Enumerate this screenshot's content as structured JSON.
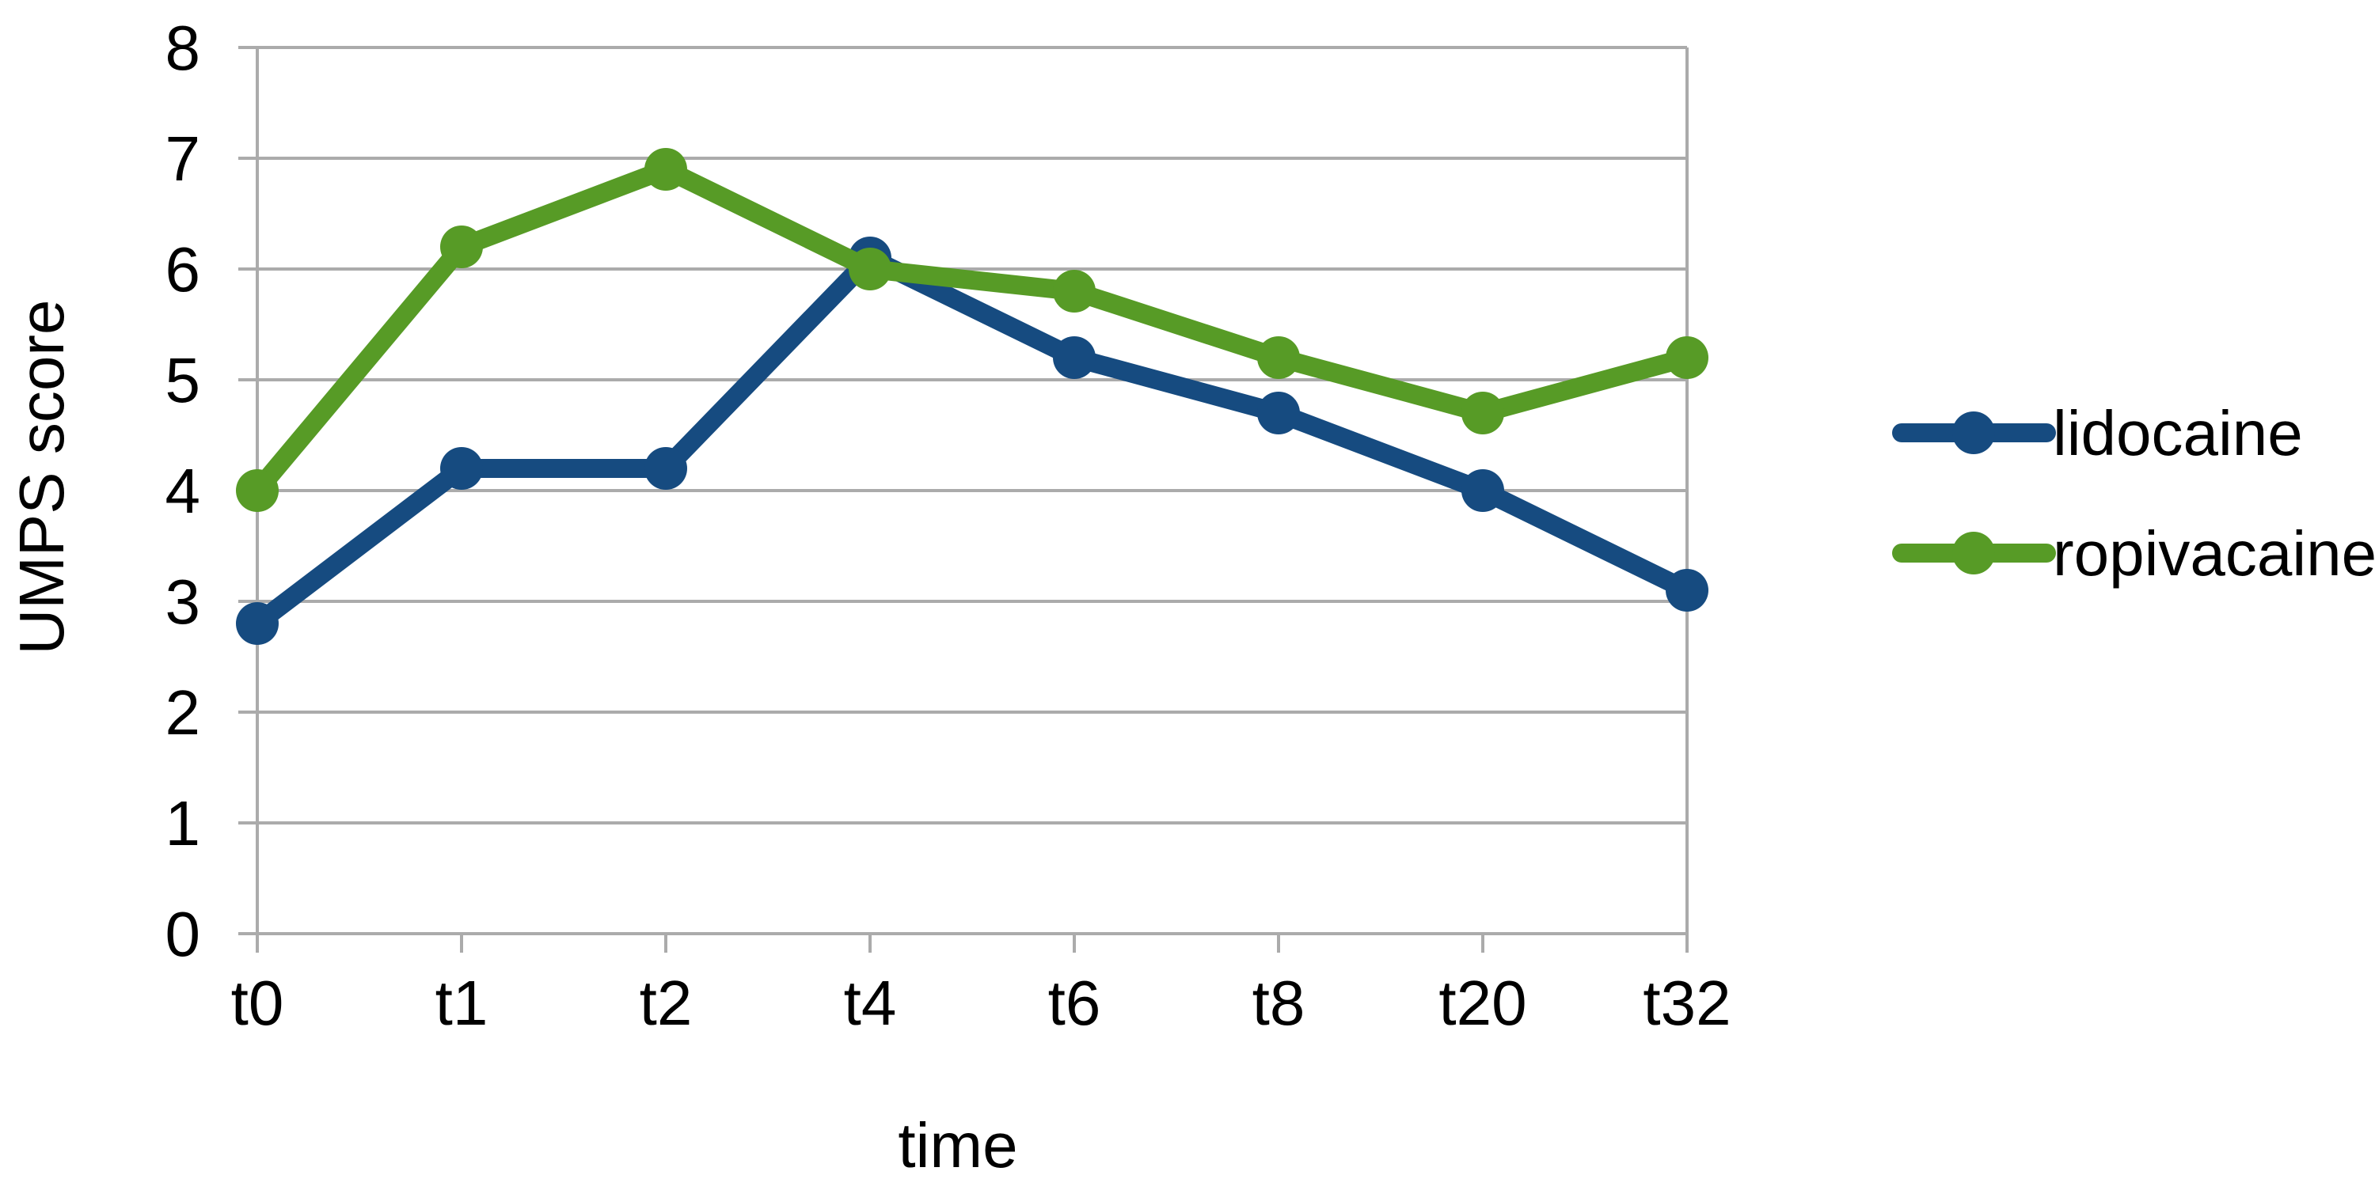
{
  "chart_data": {
    "type": "line",
    "title": "",
    "categories": [
      "t0",
      "t1",
      "t2",
      "t4",
      "t6",
      "t8",
      "t20",
      "t32"
    ],
    "series": [
      {
        "name": "lidocaine",
        "color": "#164B80",
        "values": [
          2.8,
          4.2,
          4.2,
          6.1,
          5.2,
          4.7,
          4.0,
          3.1
        ]
      },
      {
        "name": "ropivacaine",
        "color": "#579B26",
        "values": [
          4.0,
          6.2,
          6.9,
          6.0,
          5.8,
          5.2,
          4.7,
          5.2
        ]
      }
    ],
    "xlabel": "time",
    "ylabel": "UMPS score",
    "ylim": [
      0,
      8
    ],
    "y_ticks": [
      0,
      1,
      2,
      3,
      4,
      5,
      6,
      7,
      8
    ],
    "grid": true,
    "legend_position": "right",
    "marker": "circle",
    "colors": {
      "gridline": "#ABABAB",
      "axis": "#ABABAB",
      "text": "#000000",
      "background": "#FFFFFF"
    }
  }
}
